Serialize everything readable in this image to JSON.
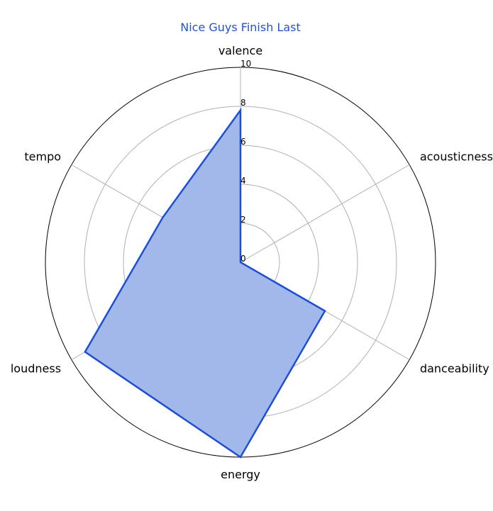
{
  "chart_data": {
    "type": "radar",
    "title": "Nice Guys Finish Last",
    "axes": [
      "valence",
      "acousticness",
      "danceability",
      "energy",
      "loudness",
      "tempo"
    ],
    "values": [
      7.8,
      0.0,
      5.0,
      10.0,
      9.2,
      4.6
    ],
    "rlim": [
      0,
      10
    ],
    "rticks": [
      0,
      2,
      4,
      6,
      8,
      10
    ],
    "grid": true,
    "legend": "none"
  },
  "colors": {
    "title": "#2653c9",
    "line": "#1f4fd1",
    "fill": "#a3b8ea",
    "grid": "#b0b0b0",
    "outer": "#000000"
  }
}
